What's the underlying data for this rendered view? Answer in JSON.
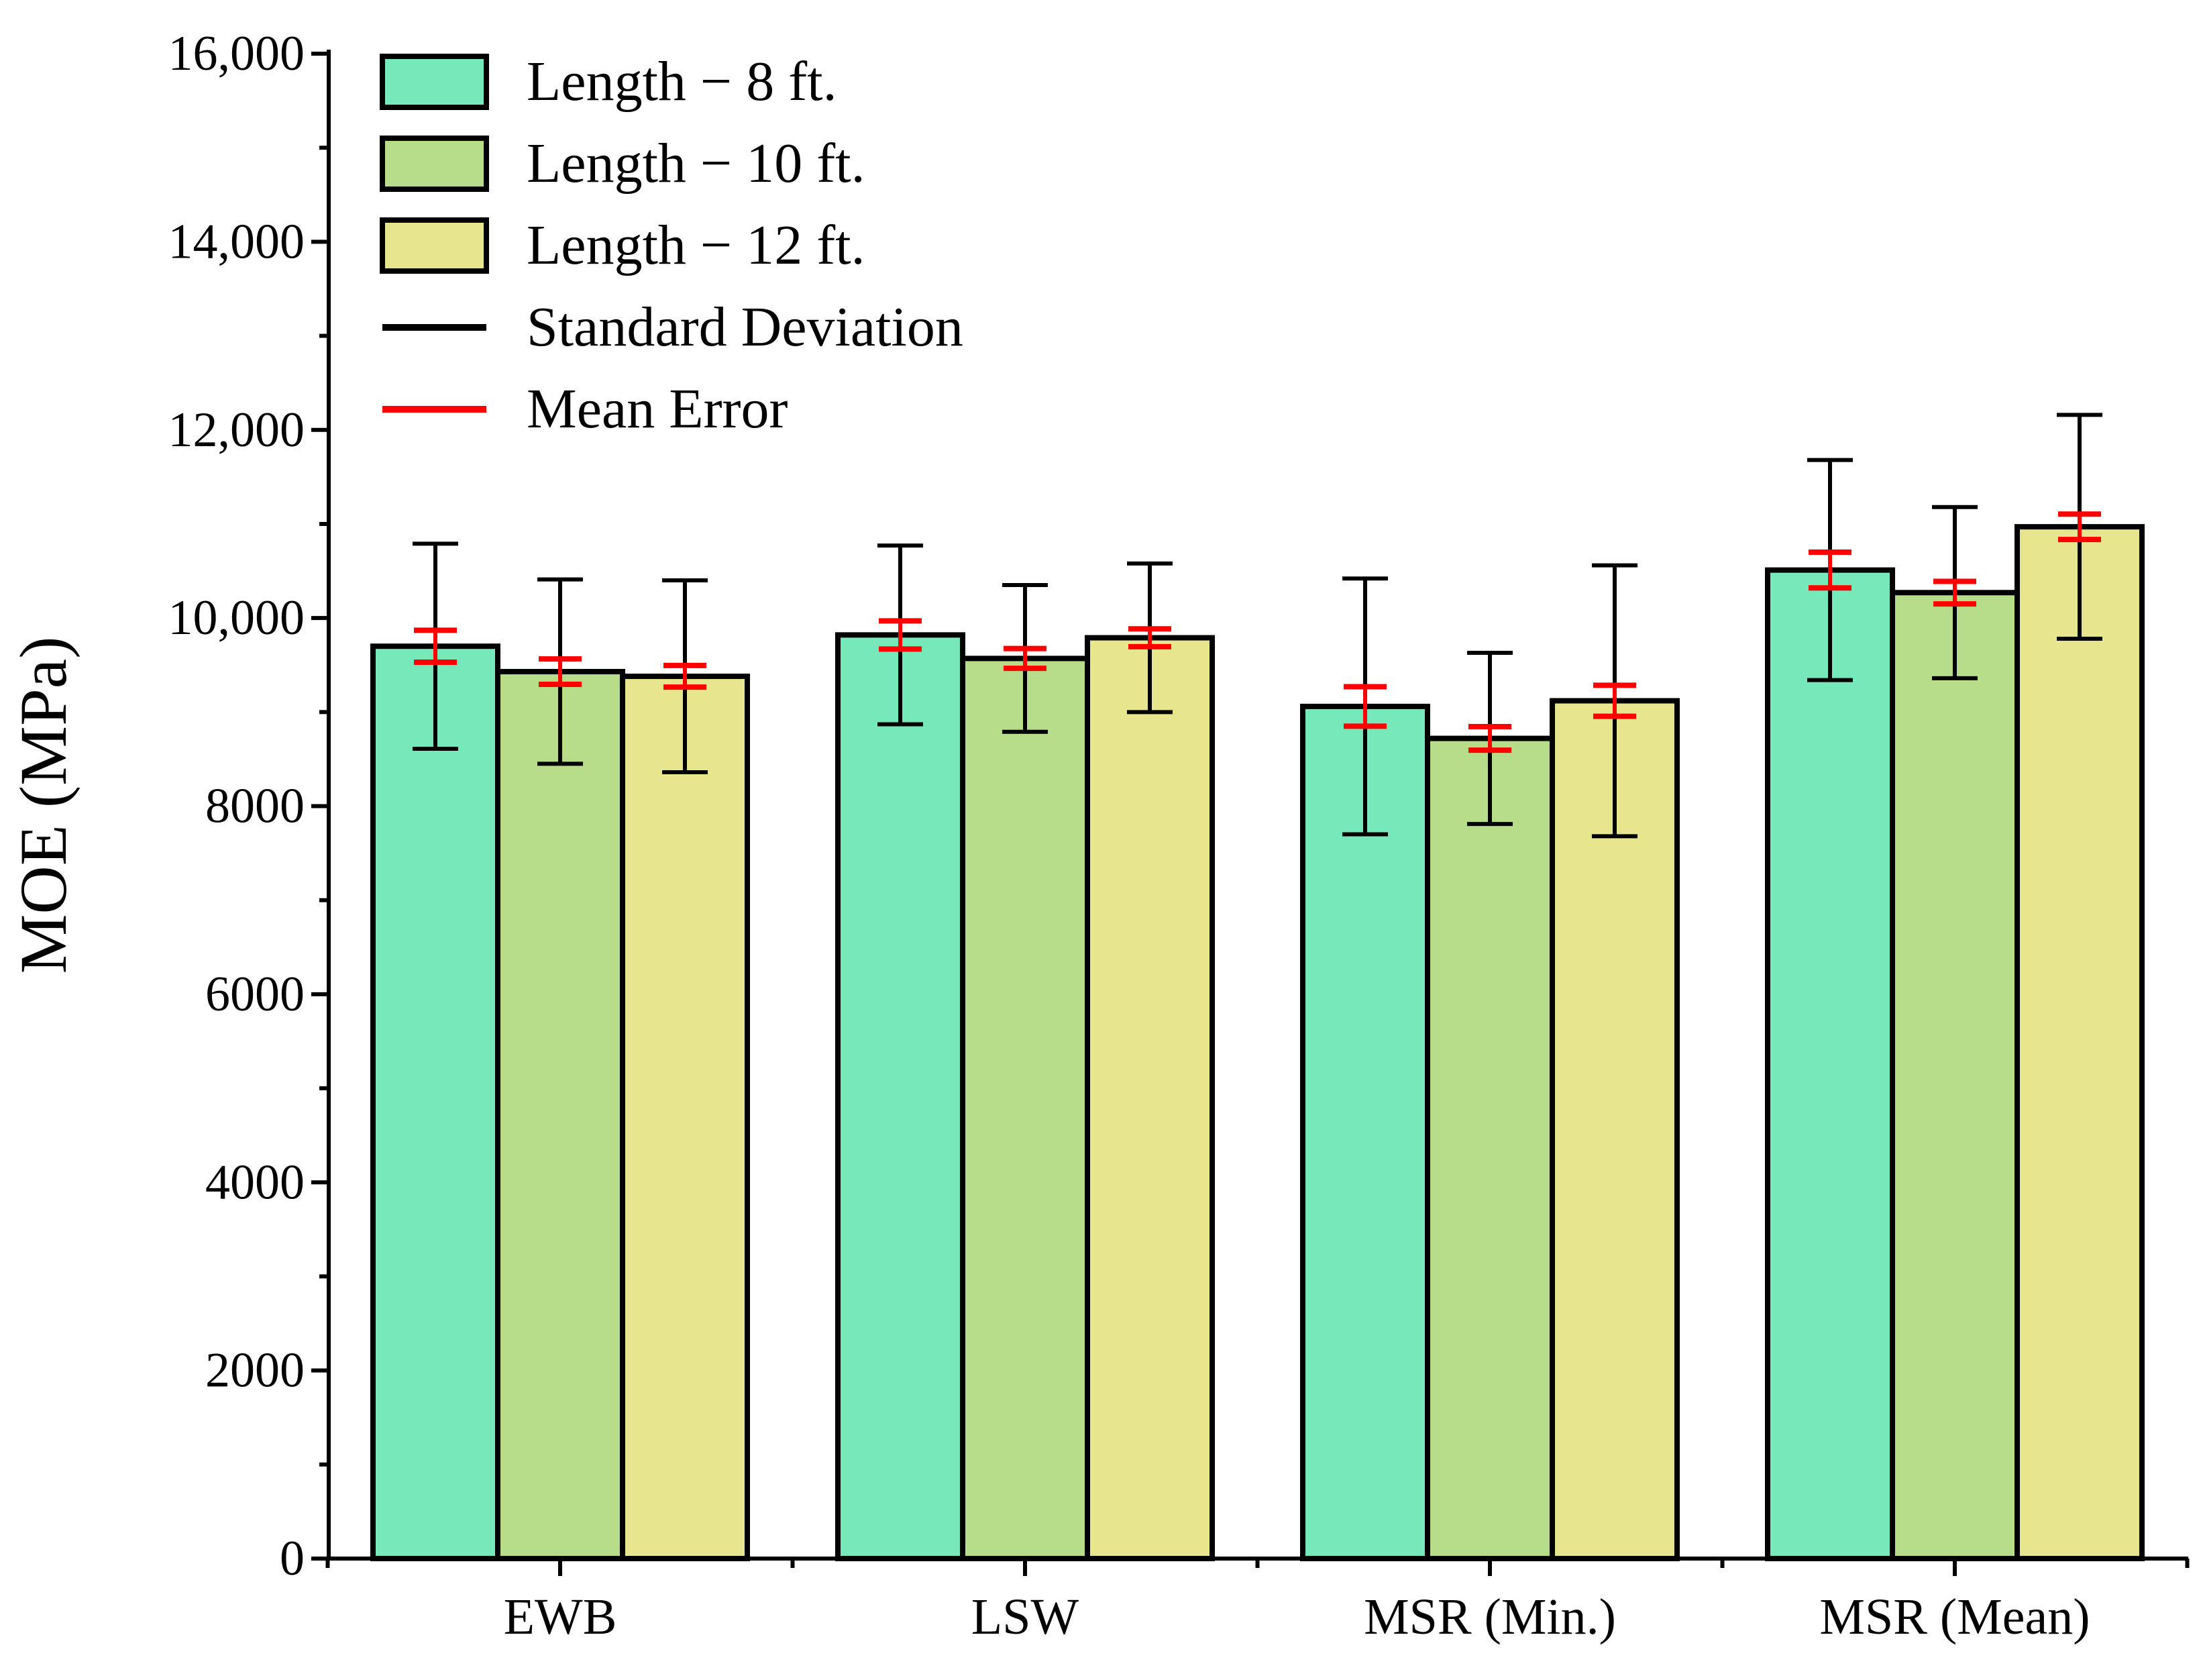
{
  "chart_data": {
    "type": "bar",
    "title": "",
    "xlabel": "",
    "ylabel": "MOE (MPa)",
    "ylim": [
      0,
      16000
    ],
    "yticks": [
      0,
      2000,
      4000,
      6000,
      8000,
      10000,
      12000,
      14000,
      16000
    ],
    "ytick_labels": [
      "0",
      "2000",
      "4000",
      "6000",
      "8000",
      "10,000",
      "12,000",
      "14,000",
      "16,000"
    ],
    "categories": [
      "EWB",
      "LSW",
      "MSR (Min.)",
      "MSR (Mean)"
    ],
    "series": [
      {
        "name": "Length − 8 ft.",
        "color": "#76E8B9",
        "values": [
          9700,
          9820,
          9060,
          10510
        ],
        "std": [
          1090,
          950,
          1360,
          1170
        ],
        "mean_error": [
          170,
          150,
          210,
          190
        ]
      },
      {
        "name": "Length − 10 ft.",
        "color": "#B7DD8A",
        "values": [
          9430,
          9570,
          8720,
          10270
        ],
        "std": [
          980,
          780,
          910,
          910
        ],
        "mean_error": [
          135,
          105,
          125,
          120
        ]
      },
      {
        "name": "Length − 12 ft.",
        "color": "#E7E68E",
        "values": [
          9380,
          9790,
          9120,
          10970
        ],
        "std": [
          1020,
          790,
          1440,
          1190
        ],
        "mean_error": [
          115,
          95,
          165,
          135
        ]
      }
    ],
    "legend": {
      "position": "top-left",
      "std_label": "Standard Deviation",
      "std_color": "#000000",
      "mean_error_label": "Mean Error",
      "mean_error_color": "#FF0000"
    },
    "grid": false
  }
}
